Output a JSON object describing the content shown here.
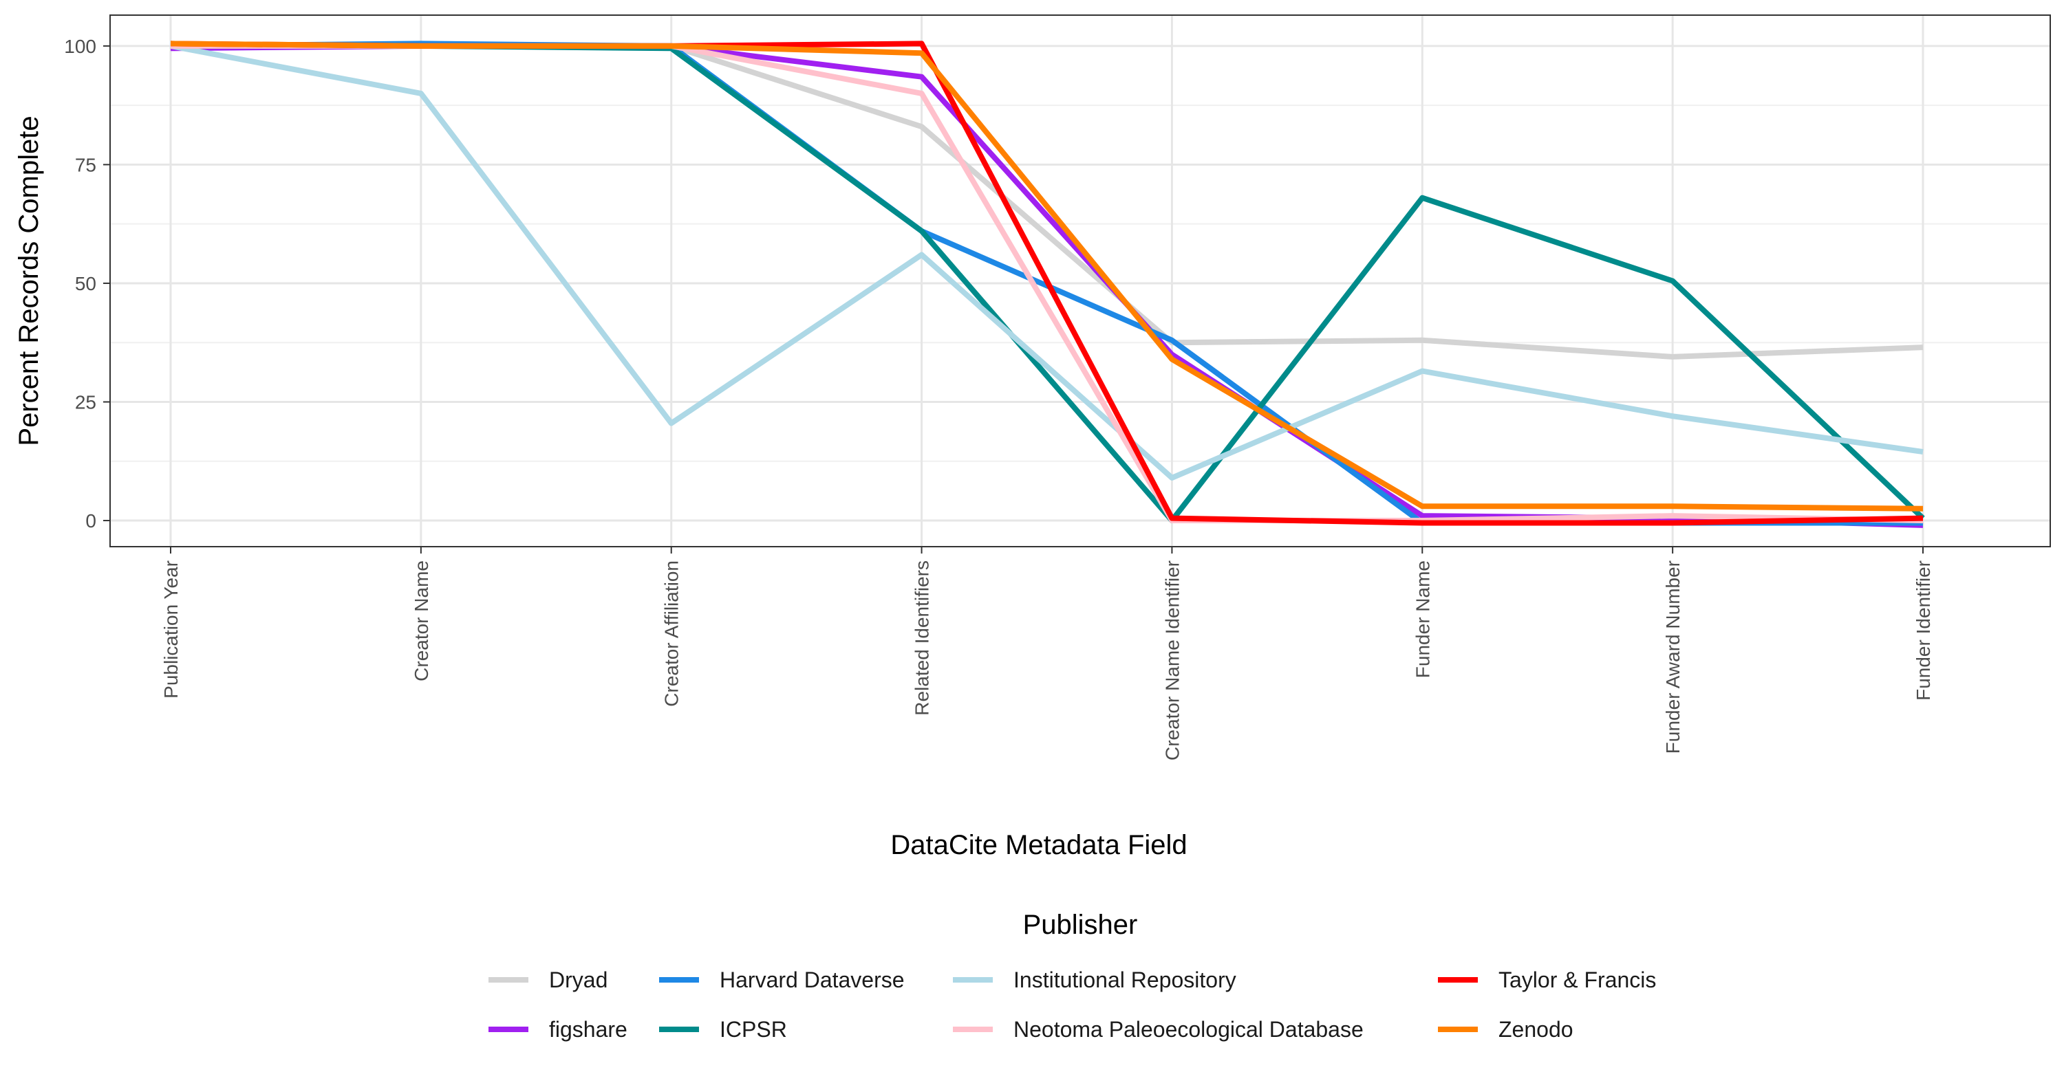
{
  "chart_data": {
    "type": "line",
    "xlabel": "DataCite Metadata Field",
    "ylabel": "Percent Records Complete",
    "ylim": [
      -5.5,
      106.5
    ],
    "yticks": [
      0,
      25,
      50,
      75,
      100
    ],
    "grid": true,
    "legend_position": "bottom",
    "legend_title": "Publisher",
    "categories": [
      "Publication Year",
      "Creator Name",
      "Creator Affiliation",
      "Related Identifiers",
      "Creator Name Identifier",
      "Funder Name",
      "Funder Award Number",
      "Funder Identifier"
    ],
    "series": [
      {
        "name": "Dryad",
        "color": "#d3d3d3",
        "values": [
          100,
          100,
          100,
          83,
          37.5,
          38,
          34.5,
          36.5
        ]
      },
      {
        "name": "figshare",
        "color": "#a020f0",
        "values": [
          99.5,
          100,
          100,
          93.5,
          35,
          1,
          0.5,
          -1
        ]
      },
      {
        "name": "Harvard Dataverse",
        "color": "#1e88e5",
        "values": [
          100,
          100.5,
          100,
          61,
          38,
          -0.5,
          -0.5,
          -0.5
        ]
      },
      {
        "name": "ICPSR",
        "color": "#008b8b",
        "values": [
          100,
          100,
          99.5,
          61,
          0,
          68,
          50.5,
          0.5
        ]
      },
      {
        "name": "Institutional Repository",
        "color": "#add8e6",
        "values": [
          100,
          90,
          20.5,
          56,
          9,
          31.5,
          22,
          14.5
        ]
      },
      {
        "name": "Neotoma Paleoecological Database",
        "color": "#ffc0cb",
        "values": [
          100,
          100,
          100,
          90,
          0,
          0,
          1,
          0
        ]
      },
      {
        "name": "Taylor & Francis",
        "color": "#ff0000",
        "values": [
          100.5,
          100,
          100,
          100.5,
          0.5,
          -0.5,
          -0.5,
          0.5
        ]
      },
      {
        "name": "Zenodo",
        "color": "#ff8000",
        "values": [
          100.5,
          100,
          100,
          98.5,
          34,
          3,
          3,
          2.5
        ]
      }
    ]
  }
}
